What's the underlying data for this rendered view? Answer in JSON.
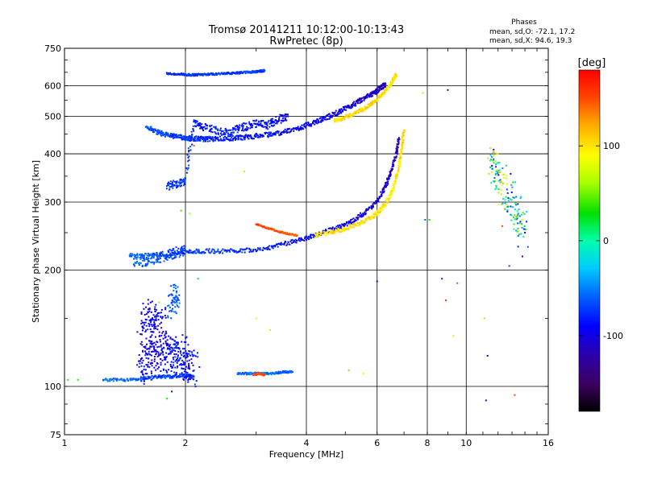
{
  "chart_data": {
    "type": "scatter",
    "title": "Tromsø 20141211 10:12:00-10:13:43",
    "subtitle": "RwPretec (8p)",
    "xlabel": "Frequency [MHz]",
    "ylabel": "Stationary phase Virtual Height [km]",
    "x_scale": "log",
    "y_scale": "log",
    "xlim": [
      1,
      16
    ],
    "ylim": [
      75,
      750
    ],
    "x_ticks": [
      1,
      2,
      4,
      6,
      8,
      10,
      16
    ],
    "x_tick_labels": [
      "1",
      "2",
      "4",
      "6",
      "8",
      "10",
      "16"
    ],
    "y_ticks": [
      75,
      100,
      200,
      300,
      400,
      500,
      600,
      750
    ],
    "y_tick_labels": [
      "75",
      "100",
      "200",
      "300",
      "400",
      "500",
      "600",
      "750"
    ],
    "grid": true,
    "phase_panel": {
      "heading": "Phases",
      "line1": "mean, sd,O: -72.1, 17.2",
      "line2": "mean, sd,X:  94.6, 19.3"
    },
    "colorbar": {
      "label": "[deg]",
      "range": [
        -180,
        180
      ],
      "ticks": [
        100,
        0,
        -100
      ],
      "tick_labels": [
        "100",
        "0",
        "-100"
      ]
    },
    "series": [
      {
        "x": [
          1.8,
          1.95,
          2.05,
          2.15,
          2.3,
          2.5,
          2.7,
          2.9,
          3.05,
          3.15
        ],
        "y": [
          645,
          642,
          640,
          641,
          643,
          645,
          648,
          651,
          654,
          657
        ],
        "phase": [
          -80,
          -78,
          -75,
          -77,
          -70,
          -72,
          -74,
          -71,
          -73,
          -70
        ],
        "spread": 0.008
      },
      {
        "x": [
          1.6,
          1.7,
          1.8,
          1.9,
          2.0,
          2.1,
          2.2,
          2.3,
          2.5,
          2.7,
          2.9,
          3.2,
          3.5,
          3.8,
          4.1,
          4.4,
          4.7,
          5.0,
          5.3,
          5.6,
          5.9,
          6.1,
          6.3
        ],
        "y": [
          470,
          455,
          448,
          443,
          440,
          438,
          437,
          437,
          438,
          440,
          443,
          448,
          455,
          465,
          478,
          492,
          507,
          523,
          540,
          558,
          575,
          590,
          605
        ],
        "phase": [
          -65,
          -68,
          -70,
          -72,
          -74,
          -75,
          -78,
          -80,
          -82,
          -84,
          -86,
          -88,
          -90,
          -92,
          -95,
          -97,
          -100,
          -103,
          -106,
          -110,
          -112,
          -114,
          -115
        ],
        "spread": 0.018
      },
      {
        "x": [
          4.7,
          5.0,
          5.3,
          5.6,
          5.9,
          6.2,
          6.45,
          6.6,
          6.7
        ],
        "y": [
          487,
          497,
          510,
          525,
          545,
          570,
          600,
          625,
          640
        ],
        "phase": [
          100,
          102,
          104,
          106,
          103,
          100,
          98,
          101,
          104
        ],
        "spread": 0.014
      },
      {
        "x": [
          1.45,
          1.6,
          1.8,
          2.0,
          2.2,
          2.5,
          2.8,
          3.2,
          3.6,
          4.0,
          4.4,
          4.8,
          5.2,
          5.6,
          6.0,
          6.3,
          6.5,
          6.7,
          6.8
        ],
        "y": [
          218,
          218,
          220,
          223,
          224,
          224,
          225,
          228,
          235,
          242,
          250,
          258,
          268,
          282,
          300,
          330,
          360,
          400,
          440
        ],
        "phase": [
          -60,
          -62,
          -66,
          -70,
          -72,
          -75,
          -78,
          -82,
          -86,
          -90,
          -94,
          -98,
          -102,
          -106,
          -110,
          -113,
          -115,
          -117,
          -118
        ],
        "spread": 0.016
      },
      {
        "x": [
          3.0,
          3.2,
          3.4,
          3.6,
          3.8
        ],
        "y": [
          263,
          257,
          252,
          248,
          246
        ],
        "phase": [
          155,
          152,
          148,
          144,
          140
        ],
        "spread": 0.006
      },
      {
        "x": [
          4.2,
          4.6,
          5.0,
          5.4,
          5.8,
          6.1,
          6.4,
          6.6,
          6.8,
          6.9,
          7.0
        ],
        "y": [
          246,
          250,
          256,
          263,
          273,
          285,
          305,
          330,
          370,
          410,
          460
        ],
        "phase": [
          100,
          102,
          104,
          103,
          101,
          100,
          98,
          99,
          102,
          104,
          106
        ],
        "spread": 0.016
      },
      {
        "x": [
          1.25,
          1.4,
          1.55,
          1.7,
          1.85,
          2.0,
          2.1
        ],
        "y": [
          104,
          104,
          105,
          106,
          106,
          107,
          106
        ],
        "phase": [
          -55,
          -58,
          -62,
          -66,
          -70,
          -72,
          -70
        ],
        "spread": 0.012
      },
      {
        "x": [
          1.55,
          1.6,
          1.65,
          1.7,
          1.75,
          1.8,
          1.85,
          1.9,
          1.95,
          2.0,
          2.05,
          2.1
        ],
        "y": [
          110,
          115,
          120,
          125,
          112,
          130,
          120,
          118,
          125,
          112,
          115,
          110
        ],
        "phase": [
          -90,
          -95,
          -100,
          -110,
          -85,
          -105,
          -90,
          -80,
          -95,
          -85,
          -100,
          -75
        ],
        "spread": 0.12
      },
      {
        "x": [
          1.55,
          1.6,
          1.65,
          1.7,
          1.75
        ],
        "y": [
          135,
          145,
          155,
          140,
          150
        ],
        "phase": [
          -110,
          -100,
          -90,
          -105,
          -95
        ],
        "spread": 0.12
      },
      {
        "x": [
          1.85,
          1.88,
          1.9
        ],
        "y": [
          160,
          170,
          175
        ],
        "phase": [
          -60,
          -65,
          -55
        ],
        "spread": 0.08
      },
      {
        "x": [
          2.7,
          2.9,
          3.1,
          3.3,
          3.5,
          3.7
        ],
        "y": [
          108,
          108,
          108,
          108,
          109,
          109
        ],
        "phase": [
          -60,
          -55,
          -50,
          -58,
          -62,
          -60
        ],
        "spread": 0.008
      },
      {
        "x": [
          2.95,
          3.05,
          3.15
        ],
        "y": [
          107,
          108,
          107
        ],
        "phase": [
          150,
          148,
          152
        ],
        "spread": 0.006
      },
      {
        "x": [
          1.5,
          1.6,
          1.7,
          1.8,
          1.9,
          2.0
        ],
        "y": [
          210,
          212,
          215,
          218,
          222,
          225
        ],
        "phase": [
          -55,
          -60,
          -65,
          -70,
          -75,
          -72
        ],
        "spread": 0.04
      },
      {
        "x": [
          1.8,
          1.9,
          2.0,
          2.1,
          2.2,
          2.4,
          2.6,
          2.8,
          3.0,
          3.2,
          3.4,
          3.6
        ],
        "y": [
          330,
          335,
          340,
          480,
          470,
          460,
          455,
          470,
          480,
          475,
          490,
          500
        ],
        "phase": [
          -70,
          -75,
          -72,
          -80,
          -85,
          -78,
          -82,
          -88,
          -90,
          -86,
          -92,
          -95
        ],
        "spread": 0.03
      },
      {
        "x": [
          11.5,
          12.0,
          12.3,
          13.0,
          13.5,
          14.0
        ],
        "y": [
          380,
          360,
          330,
          300,
          270,
          250
        ],
        "phase": [
          120,
          -80,
          110,
          -90,
          60,
          -100
        ],
        "spread": 0.12
      }
    ],
    "sparse_points": [
      {
        "x": 1.02,
        "y": 104,
        "phase": 40
      },
      {
        "x": 1.08,
        "y": 104,
        "phase": 35
      },
      {
        "x": 1.85,
        "y": 97,
        "phase": -140
      },
      {
        "x": 1.8,
        "y": 93,
        "phase": 30
      },
      {
        "x": 1.72,
        "y": 165,
        "phase": 60
      },
      {
        "x": 1.95,
        "y": 285,
        "phase": 40
      },
      {
        "x": 2.1,
        "y": 420,
        "phase": 150
      },
      {
        "x": 2.05,
        "y": 280,
        "phase": 60
      },
      {
        "x": 2.15,
        "y": 190,
        "phase": 20
      },
      {
        "x": 2.8,
        "y": 360,
        "phase": 60
      },
      {
        "x": 3.0,
        "y": 150,
        "phase": 100
      },
      {
        "x": 3.25,
        "y": 140,
        "phase": 70
      },
      {
        "x": 5.1,
        "y": 110,
        "phase": 120
      },
      {
        "x": 5.55,
        "y": 108,
        "phase": 90
      },
      {
        "x": 6.0,
        "y": 187,
        "phase": -120
      },
      {
        "x": 7.9,
        "y": 270,
        "phase": -60
      },
      {
        "x": 7.8,
        "y": 575,
        "phase": 110
      },
      {
        "x": 8.1,
        "y": 270,
        "phase": 30
      },
      {
        "x": 8.7,
        "y": 190,
        "phase": -80
      },
      {
        "x": 8.9,
        "y": 167,
        "phase": 160
      },
      {
        "x": 9.0,
        "y": 585,
        "phase": -130
      },
      {
        "x": 9.3,
        "y": 135,
        "phase": 70
      },
      {
        "x": 9.5,
        "y": 185,
        "phase": 150
      },
      {
        "x": 11.2,
        "y": 92,
        "phase": -120
      },
      {
        "x": 11.3,
        "y": 120,
        "phase": -100
      },
      {
        "x": 11.7,
        "y": 410,
        "phase": -110
      },
      {
        "x": 12.3,
        "y": 260,
        "phase": 150
      },
      {
        "x": 12.8,
        "y": 205,
        "phase": -70
      },
      {
        "x": 13.2,
        "y": 95,
        "phase": 150
      },
      {
        "x": 13.8,
        "y": 217,
        "phase": -140
      },
      {
        "x": 11.1,
        "y": 150,
        "phase": 110
      },
      {
        "x": 12.9,
        "y": 355,
        "phase": -90
      }
    ]
  }
}
